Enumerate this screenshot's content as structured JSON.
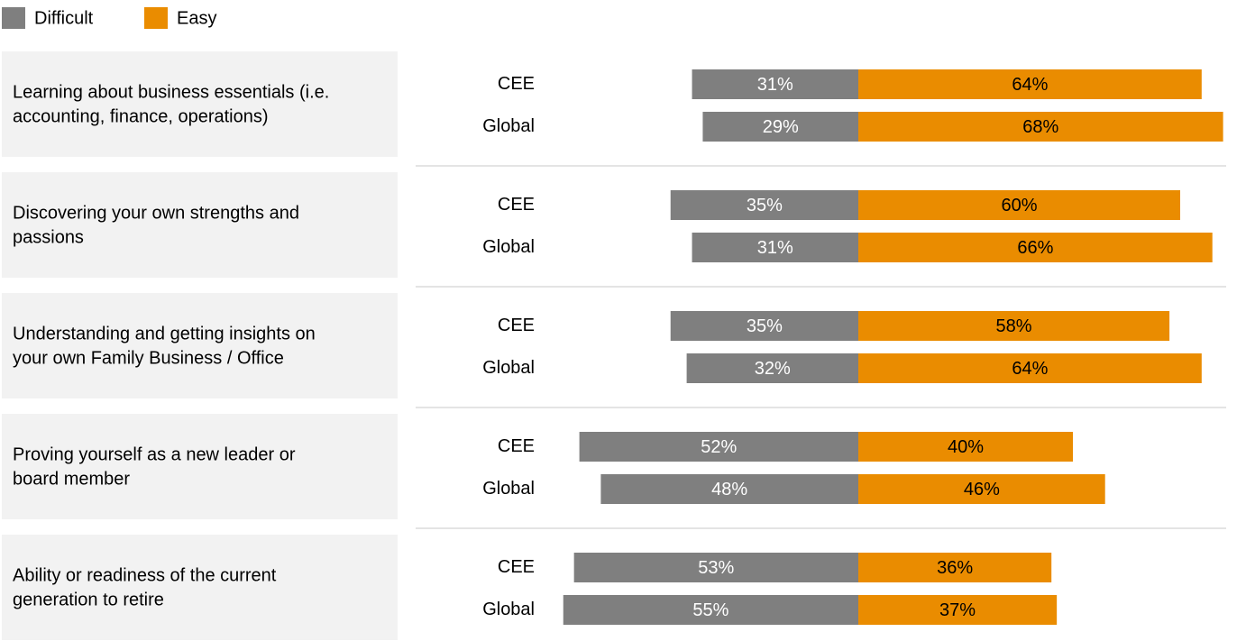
{
  "chart_data": {
    "type": "diverging_bar",
    "categories": [
      [
        "Learning about business essentials (i.e.",
        "accounting, finance, operations)"
      ],
      [
        "Discovering your own strengths and",
        "passions"
      ],
      [
        "Understanding and getting insights on",
        "your own Family Business / Office"
      ],
      [
        "Proving yourself as a new leader or",
        "board member"
      ],
      [
        "Ability or readiness of the current",
        "generation to retire"
      ]
    ],
    "groups": [
      "CEE",
      "Global"
    ],
    "series": [
      {
        "name": "Difficult",
        "color": "#7f7f7f",
        "values": [
          [
            31,
            29
          ],
          [
            35,
            31
          ],
          [
            35,
            32
          ],
          [
            52,
            48
          ],
          [
            53,
            55
          ]
        ],
        "value_labels": [
          [
            "31%",
            "29%"
          ],
          [
            "35%",
            "31%"
          ],
          [
            "35%",
            "32%"
          ],
          [
            "52%",
            "48%"
          ],
          [
            "53%",
            "55%"
          ]
        ]
      },
      {
        "name": "Easy",
        "color": "#ea8c00",
        "values": [
          [
            64,
            68
          ],
          [
            60,
            66
          ],
          [
            58,
            64
          ],
          [
            40,
            46
          ],
          [
            36,
            37
          ]
        ],
        "value_labels": [
          [
            "64%",
            "68%"
          ],
          [
            "60%",
            "66%"
          ],
          [
            "58%",
            "64%"
          ],
          [
            "40%",
            "46%"
          ],
          [
            "36%",
            "37%"
          ]
        ]
      }
    ]
  }
}
